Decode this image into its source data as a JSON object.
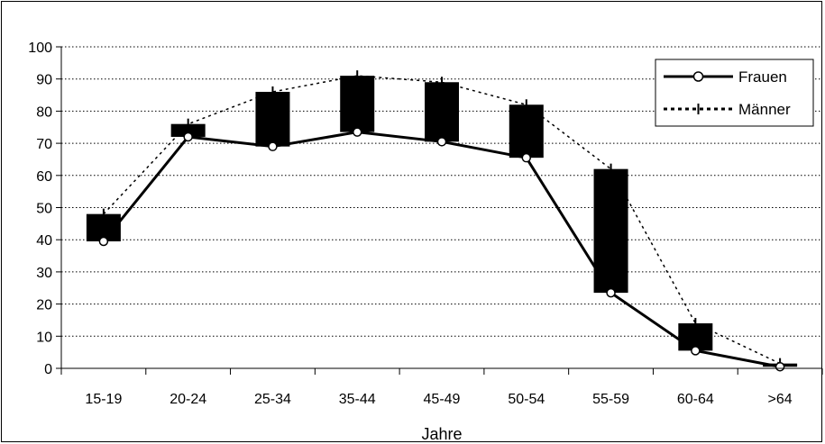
{
  "chart_data": {
    "type": "line",
    "title": "",
    "xlabel": "Jahre",
    "ylabel": "",
    "ylim": [
      0,
      100
    ],
    "yticks": [
      0,
      10,
      20,
      30,
      40,
      50,
      60,
      70,
      80,
      90,
      100
    ],
    "grid": "horizontal-dotted",
    "legend_position": "top-right",
    "categories": [
      "15-19",
      "20-24",
      "25-34",
      "35-44",
      "45-49",
      "50-54",
      "55-59",
      "60-64",
      ">64"
    ],
    "series": [
      {
        "name": "Frauen",
        "style": "solid-with-circles",
        "color": "#000000",
        "values": [
          39.5,
          72,
          69,
          73.5,
          70.5,
          65.5,
          23.5,
          5.5,
          0.5
        ]
      },
      {
        "name": "Männer",
        "style": "dotted",
        "color": "#000000",
        "values": [
          48,
          76,
          86,
          91,
          89,
          82,
          62,
          14,
          1.5
        ]
      }
    ],
    "bars_between_series": true
  }
}
